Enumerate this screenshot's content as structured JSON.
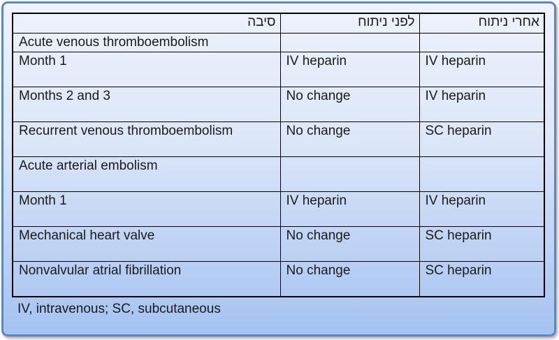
{
  "table": {
    "columns": [
      {
        "label": "סיבה"
      },
      {
        "label": "לפני ניתוח"
      },
      {
        "label": "אחרי ניתוח"
      }
    ],
    "rows": [
      {
        "cause": "Acute venous thromboembolism",
        "before": "",
        "after": "",
        "compact": true
      },
      {
        "cause": "Month 1",
        "before": "IV heparin",
        "after": "IV heparin",
        "compact": false
      },
      {
        "cause": "Months 2 and 3",
        "before": "No change",
        "after": "IV heparin",
        "compact": false
      },
      {
        "cause": "Recurrent venous thromboembolism",
        "before": "No change",
        "after": "SC heparin",
        "compact": false
      },
      {
        "cause": "Acute arterial embolism",
        "before": "",
        "after": "",
        "compact": false
      },
      {
        "cause": "Month 1",
        "before": "IV heparin",
        "after": "IV heparin",
        "compact": false
      },
      {
        "cause": "Mechanical heart valve",
        "before": "No change",
        "after": "SC heparin",
        "compact": false
      },
      {
        "cause": "Nonvalvular atrial fibrillation",
        "before": "No change",
        "after": "SC heparin",
        "compact": false
      }
    ],
    "footnote": "IV, intravenous; SC, subcutaneous"
  },
  "colors": {
    "frame_border": "#5b87c3",
    "gradient_top": "#eef2fc",
    "gradient_bottom": "#a5c2f1",
    "table_border": "#000000",
    "text": "#1a1a1a"
  }
}
